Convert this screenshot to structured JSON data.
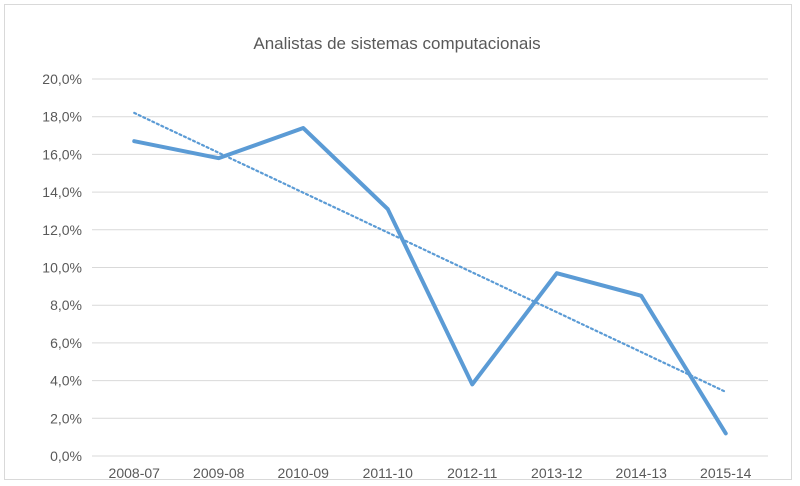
{
  "chart_data": {
    "type": "line",
    "title": "Analistas de sistemas computacionais",
    "categories": [
      "2008-07",
      "2009-08",
      "2010-09",
      "2011-10",
      "2012-11",
      "2013-12",
      "2014-13",
      "2015-14"
    ],
    "series": [
      {
        "values": [
          16.7,
          15.8,
          17.4,
          13.1,
          3.8,
          9.7,
          8.5,
          1.2
        ],
        "color": "#5b9bd5",
        "style": "solid"
      }
    ],
    "trendline": {
      "type": "linear",
      "style": "dotted",
      "color": "#5b9bd5",
      "start": 18.2,
      "end": 3.4
    },
    "ylim": [
      0,
      20
    ],
    "yticks": [
      "0,0%",
      "2,0%",
      "4,0%",
      "6,0%",
      "8,0%",
      "10,0%",
      "12,0%",
      "14,0%",
      "16,0%",
      "18,0%",
      "20,0%"
    ],
    "grid": true,
    "legend": "none",
    "colors": {
      "gridline": "#d9d9d9",
      "axis_text": "#595959",
      "series": "#5b9bd5"
    }
  }
}
